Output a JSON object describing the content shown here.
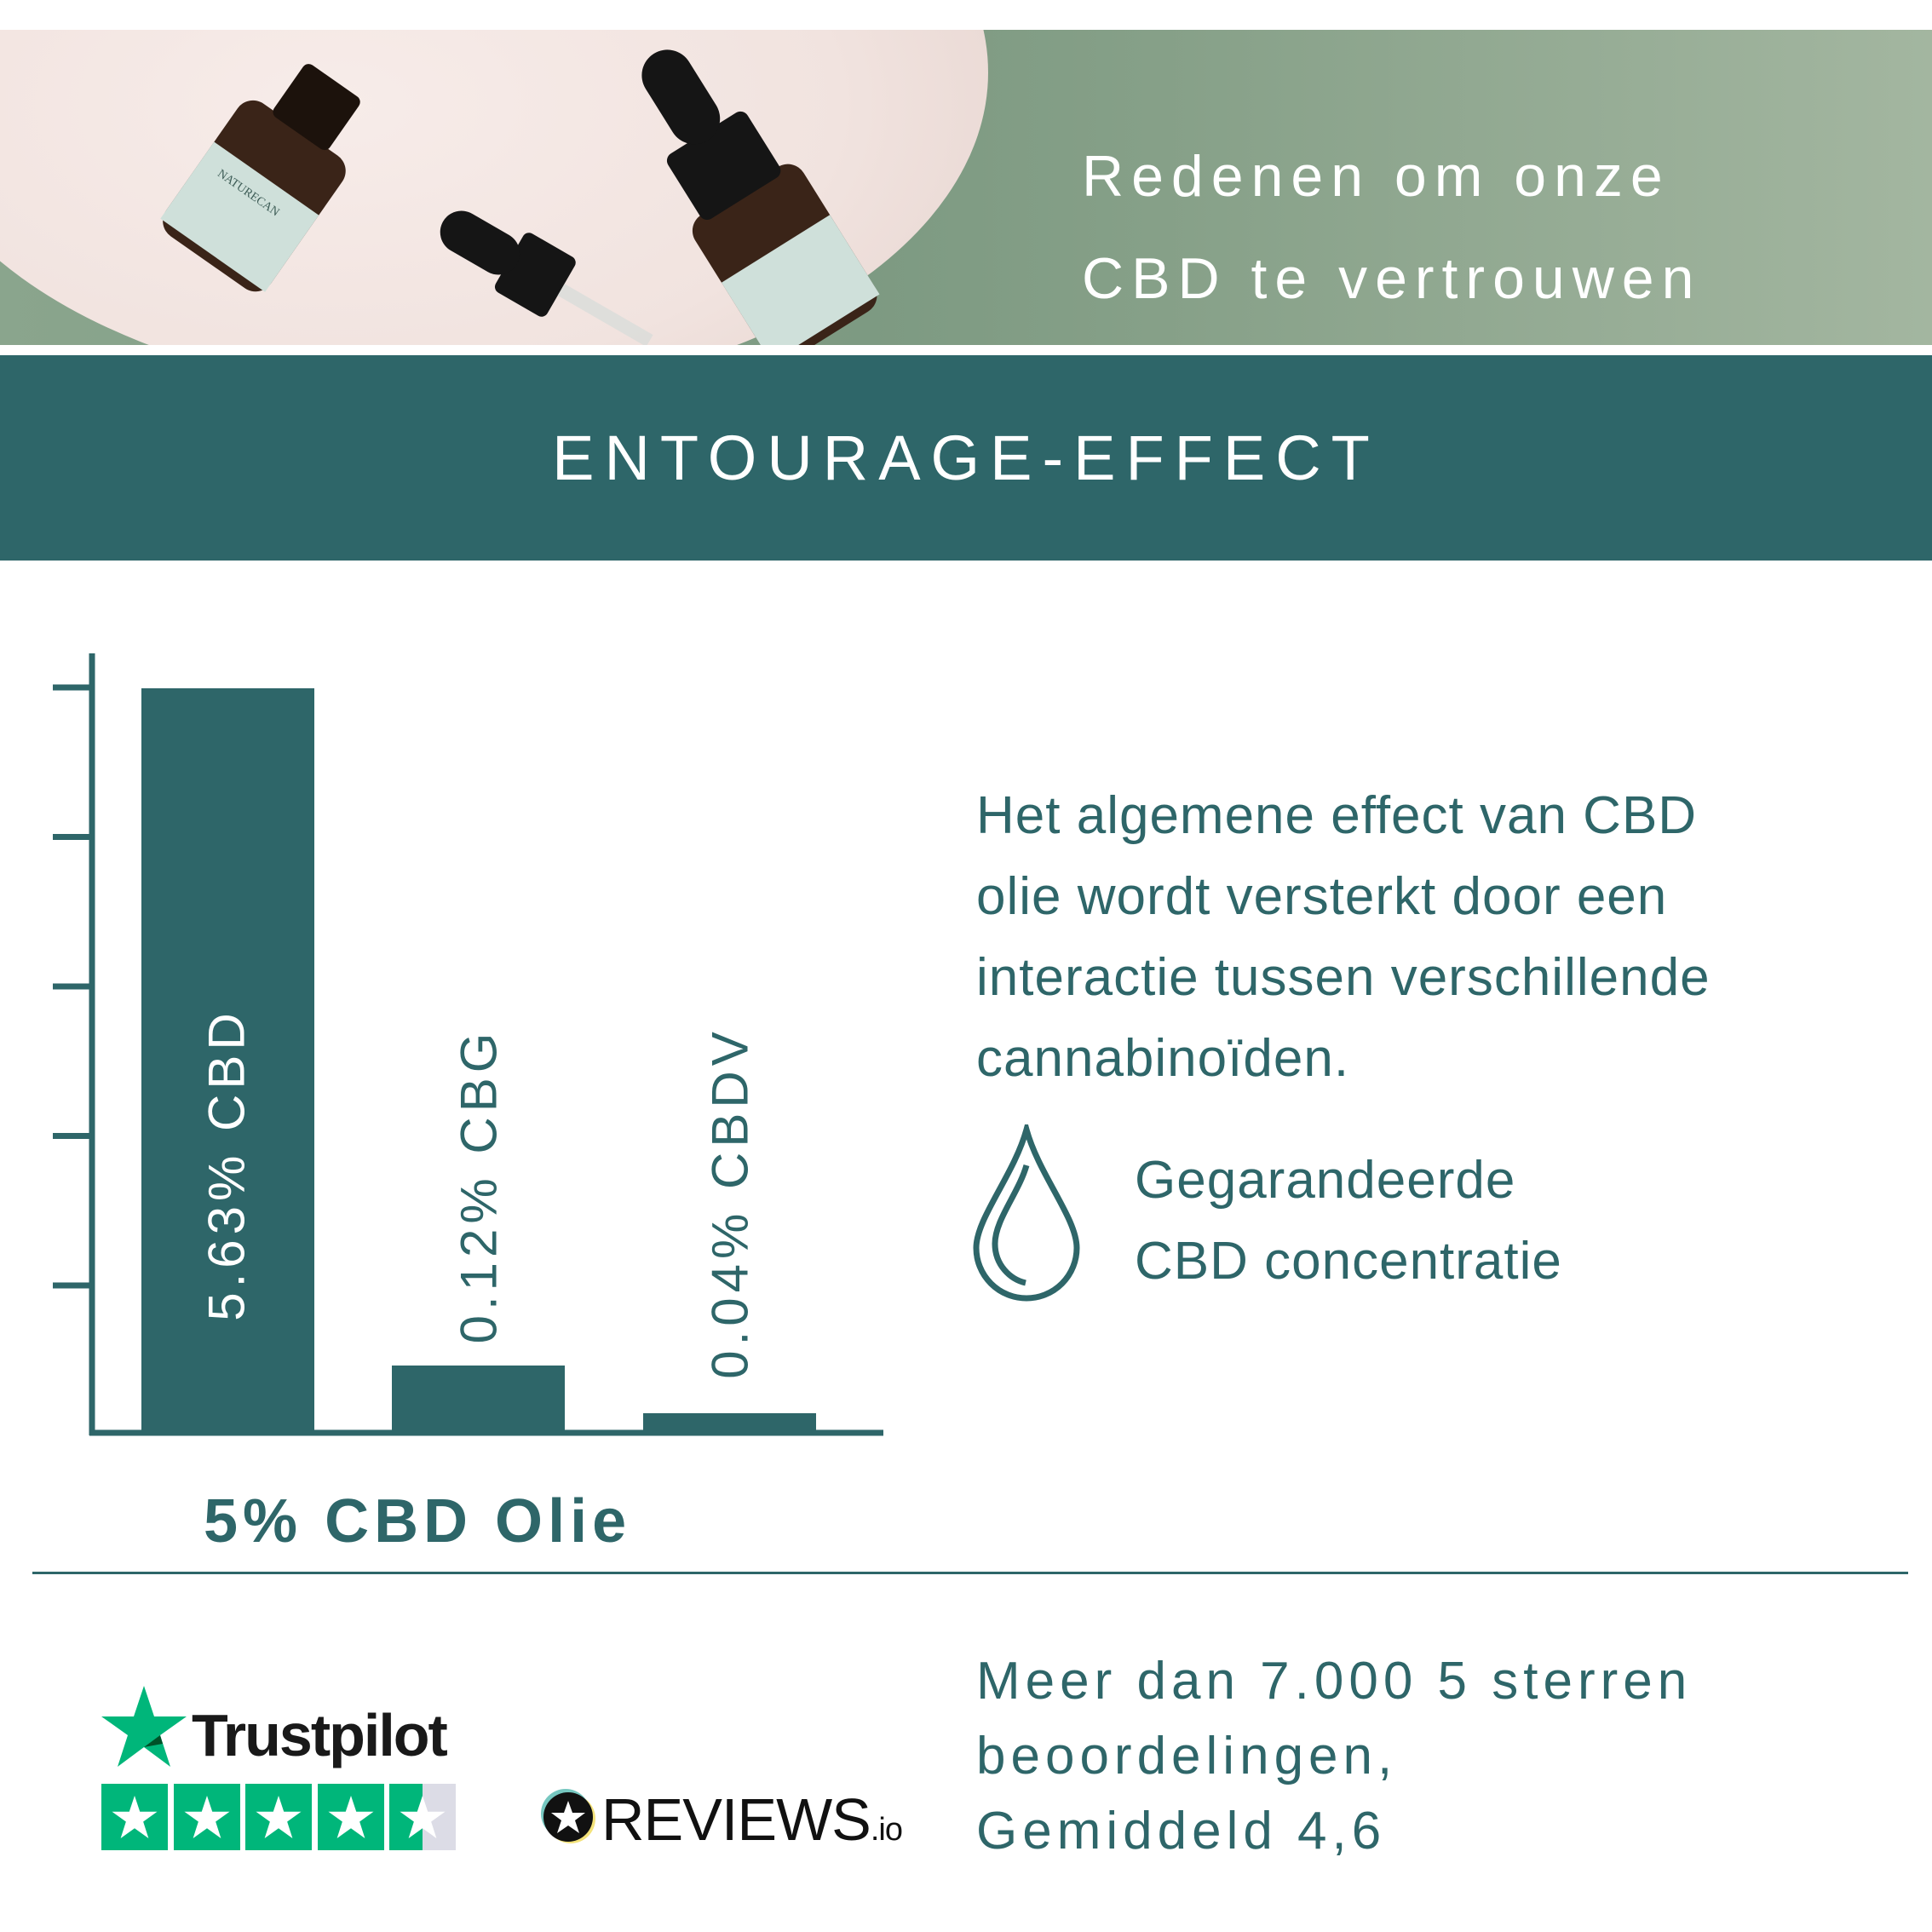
{
  "hero": {
    "title_line1": "Redenen om onze",
    "title_line2": "CBD te vertrouwen",
    "bottle_label": "NATURECAN"
  },
  "band": {
    "title": "ENTOURAGE-EFFECT"
  },
  "colors": {
    "primary": "#2e6669",
    "trustpilot_green": "#00b67a"
  },
  "chart_data": {
    "type": "bar",
    "title": "",
    "categories": [
      "CBD",
      "CBG",
      "CBDV"
    ],
    "values": [
      5.63,
      0.12,
      0.04
    ],
    "labels": [
      "5.63% CBD",
      "0.12% CBG",
      "0.04% CBDV"
    ],
    "caption": "5% CBD Olie",
    "xlabel": "",
    "ylabel": "",
    "y_ticks": 5,
    "grid": false
  },
  "description": {
    "lines": [
      "Het algemene effect van CBD",
      "olie wordt versterkt door een",
      "interactie tussen verschillende",
      "cannabinoïden."
    ]
  },
  "guarantee": {
    "icon": "drop-icon",
    "line1": "Gegarandeerde",
    "line2": "CBD concentratie"
  },
  "reviews": {
    "trustpilot_label": "Trustpilot",
    "trustpilot_stars": 4.5,
    "reviewsio_label": "REVIEWS",
    "reviewsio_suffix": ".io",
    "text_line1": "Meer dan 7.000 5 sterren",
    "text_line2": "beoordelingen,",
    "text_line3": "Gemiddeld 4,6"
  }
}
